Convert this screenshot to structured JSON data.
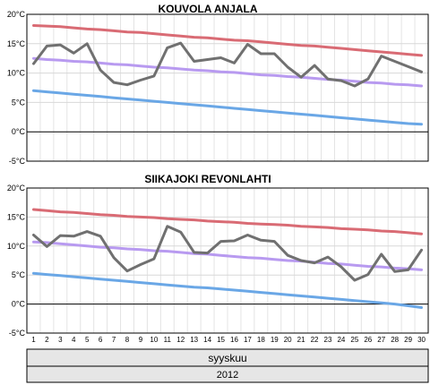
{
  "footer": {
    "month_label": "syyskuu",
    "year_label": "2012"
  },
  "chart_data": [
    {
      "type": "line",
      "title": "KOUVOLA ANJALA",
      "xlabel": "",
      "ylabel": "",
      "x": [
        1,
        2,
        3,
        4,
        5,
        6,
        7,
        8,
        9,
        10,
        11,
        12,
        13,
        14,
        15,
        16,
        17,
        18,
        19,
        20,
        21,
        22,
        23,
        24,
        25,
        26,
        27,
        28,
        29,
        30
      ],
      "ylim": [
        -5,
        20
      ],
      "yticks": [
        "20°C",
        "15°C",
        "10°C",
        "5°C",
        "0°C",
        "-5°C"
      ],
      "ytick_values": [
        20,
        15,
        10,
        5,
        0,
        -5
      ],
      "grid": true,
      "series": [
        {
          "color": "#d96b74",
          "values": [
            18.1,
            18.0,
            17.9,
            17.7,
            17.5,
            17.4,
            17.2,
            17.0,
            16.9,
            16.7,
            16.5,
            16.3,
            16.1,
            16.0,
            15.8,
            15.6,
            15.5,
            15.3,
            15.1,
            14.9,
            14.7,
            14.6,
            14.4,
            14.2,
            14.0,
            13.8,
            13.6,
            13.4,
            13.2,
            13.0
          ]
        },
        {
          "color": "#b89af0",
          "values": [
            12.5,
            12.3,
            12.2,
            12.0,
            11.9,
            11.7,
            11.5,
            11.4,
            11.2,
            11.0,
            10.9,
            10.7,
            10.5,
            10.4,
            10.2,
            10.1,
            9.9,
            9.7,
            9.6,
            9.4,
            9.3,
            9.1,
            8.9,
            8.8,
            8.6,
            8.4,
            8.3,
            8.1,
            8.0,
            7.8
          ]
        },
        {
          "color": "#6aa7e6",
          "values": [
            7.0,
            6.8,
            6.6,
            6.4,
            6.2,
            6.0,
            5.8,
            5.6,
            5.4,
            5.2,
            5.0,
            4.8,
            4.6,
            4.4,
            4.2,
            4.0,
            3.8,
            3.6,
            3.4,
            3.2,
            3.0,
            2.8,
            2.6,
            2.4,
            2.2,
            2.0,
            1.8,
            1.6,
            1.4,
            1.3
          ]
        },
        {
          "color": "#707070",
          "values": [
            11.6,
            14.6,
            14.8,
            13.4,
            15.0,
            10.5,
            8.4,
            8.0,
            8.8,
            9.5,
            14.3,
            15.1,
            12.0,
            12.3,
            12.6,
            11.7,
            14.9,
            13.3,
            13.3,
            11.0,
            9.3,
            11.3,
            9.0,
            8.7,
            7.8,
            9.0,
            12.9,
            12.0,
            11.1,
            10.2
          ]
        }
      ]
    },
    {
      "type": "line",
      "title": "SIIKAJOKI REVONLAHTI",
      "xlabel": "",
      "ylabel": "",
      "x": [
        1,
        2,
        3,
        4,
        5,
        6,
        7,
        8,
        9,
        10,
        11,
        12,
        13,
        14,
        15,
        16,
        17,
        18,
        19,
        20,
        21,
        22,
        23,
        24,
        25,
        26,
        27,
        28,
        29,
        30
      ],
      "ylim": [
        -5,
        20
      ],
      "yticks": [
        "20°C",
        "15°C",
        "10°C",
        "5°C",
        "0°C",
        "-5°C"
      ],
      "ytick_values": [
        20,
        15,
        10,
        5,
        0,
        -5
      ],
      "grid": true,
      "series": [
        {
          "color": "#d96b74",
          "values": [
            16.3,
            16.1,
            15.9,
            15.8,
            15.6,
            15.4,
            15.3,
            15.1,
            15.0,
            14.9,
            14.7,
            14.6,
            14.5,
            14.3,
            14.2,
            14.1,
            13.9,
            13.8,
            13.7,
            13.6,
            13.4,
            13.3,
            13.2,
            13.0,
            12.9,
            12.8,
            12.6,
            12.5,
            12.3,
            12.1
          ]
        },
        {
          "color": "#b89af0",
          "values": [
            10.7,
            10.6,
            10.4,
            10.2,
            10.0,
            9.8,
            9.7,
            9.5,
            9.4,
            9.2,
            9.1,
            8.9,
            8.7,
            8.6,
            8.4,
            8.2,
            8.0,
            7.9,
            7.7,
            7.5,
            7.4,
            7.2,
            7.0,
            6.9,
            6.7,
            6.5,
            6.4,
            6.2,
            6.1,
            5.9
          ]
        },
        {
          "color": "#6aa7e6",
          "values": [
            5.3,
            5.1,
            4.9,
            4.7,
            4.5,
            4.3,
            4.1,
            3.9,
            3.7,
            3.5,
            3.3,
            3.1,
            2.9,
            2.8,
            2.6,
            2.4,
            2.2,
            2.0,
            1.8,
            1.6,
            1.4,
            1.2,
            1.0,
            0.8,
            0.6,
            0.4,
            0.2,
            0.0,
            -0.3,
            -0.6
          ]
        },
        {
          "color": "#707070",
          "values": [
            11.9,
            9.9,
            11.8,
            11.7,
            12.5,
            11.7,
            8.0,
            5.7,
            6.8,
            7.8,
            13.4,
            12.4,
            8.9,
            8.8,
            10.8,
            10.9,
            11.9,
            11.0,
            10.8,
            8.4,
            7.5,
            7.1,
            8.1,
            6.4,
            4.1,
            5.1,
            8.6,
            5.6,
            5.9,
            9.3
          ]
        }
      ]
    }
  ]
}
